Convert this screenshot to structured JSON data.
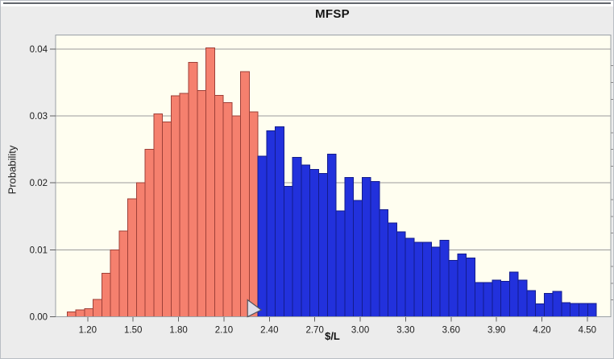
{
  "chart": {
    "title": "MFSP",
    "x_axis_label": "$/L",
    "y_axis_label": "Probability"
  },
  "chart_data": {
    "type": "bar",
    "subtype": "histogram-forecast",
    "title": "MFSP",
    "xlabel": "$/L",
    "ylabel": "Probability",
    "xlim": [
      0.988,
      4.655
    ],
    "ylim": [
      0,
      0.0421
    ],
    "x_ticks": [
      1.2,
      1.5,
      1.8,
      2.1,
      2.4,
      2.7,
      3.0,
      3.3,
      3.6,
      3.9,
      4.2,
      4.5
    ],
    "x_tick_labels": [
      "1.20",
      "1.50",
      "1.80",
      "2.10",
      "2.40",
      "2.70",
      "3.00",
      "3.30",
      "3.60",
      "3.90",
      "4.20",
      "4.50"
    ],
    "y_ticks": [
      0,
      0.01,
      0.02,
      0.03,
      0.04
    ],
    "y_tick_labels": [
      "0.00",
      "0.01",
      "0.02",
      "0.03",
      "0.04"
    ],
    "y_minor_tick_step": 0.0025,
    "grid": "horizontal",
    "legend": "none",
    "plot_background": "#FFFEF0",
    "panel_background": "#ECECEC",
    "grid_color": "#9b9b9b",
    "first_bin_left_edge": 1.064,
    "bin_width": 0.0573,
    "divider_x": 2.325,
    "marker": {
      "shape": "right-pointing-grabber",
      "x": 2.325,
      "fill": "#DEDEE8",
      "stroke": "#52525c"
    },
    "series": [
      {
        "name": "below-certainty-divider",
        "color": "#F5806E",
        "border": "#9E4038",
        "values": [
          0.0007,
          0.001,
          0.0012,
          0.0026,
          0.0065,
          0.01,
          0.0128,
          0.0176,
          0.02,
          0.025,
          0.0303,
          0.0291,
          0.033,
          0.0334,
          0.038,
          0.0338,
          0.0402,
          0.0331,
          0.032,
          0.03,
          0.0366,
          0.0306
        ]
      },
      {
        "name": "above-certainty-divider",
        "color": "#2231DC",
        "border": "#131C8C",
        "values": [
          0.024,
          0.0278,
          0.0284,
          0.0195,
          0.0238,
          0.0227,
          0.022,
          0.0214,
          0.0243,
          0.0158,
          0.0208,
          0.0174,
          0.0208,
          0.0202,
          0.016,
          0.014,
          0.0127,
          0.0117,
          0.0111,
          0.0111,
          0.0104,
          0.0114,
          0.0084,
          0.0094,
          0.0088,
          0.0051,
          0.0051,
          0.0055,
          0.0053,
          0.0067,
          0.0055,
          0.0039,
          0.0019,
          0.0035,
          0.0038,
          0.0021,
          0.002,
          0.002,
          0.002
        ]
      }
    ]
  }
}
